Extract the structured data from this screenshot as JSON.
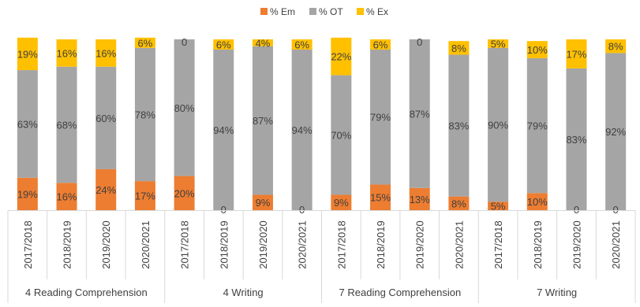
{
  "chart_data": {
    "type": "bar",
    "stacked": true,
    "legend": {
      "position": "top",
      "items": [
        {
          "name": "% Em",
          "color": "#ED7D31"
        },
        {
          "name": "% OT",
          "color": "#A5A5A5"
        },
        {
          "name": "% Ex",
          "color": "#FFC000"
        }
      ]
    },
    "groups": [
      {
        "name": "4 Reading Comprehension",
        "categories": [
          "2017/2018",
          "2018/2019",
          "2019/2020",
          "2020/2021"
        ]
      },
      {
        "name": "4 Writing",
        "categories": [
          "2017/2018",
          "2018/2019",
          "2019/2020",
          "2020/2021"
        ]
      },
      {
        "name": "7 Reading Comprehension",
        "categories": [
          "2017/2018",
          "2018/2019",
          "2019/2020",
          "2020/2021"
        ]
      },
      {
        "name": "7 Writing",
        "categories": [
          "2017/2018",
          "2018/2019",
          "2019/2020",
          "2020/2021"
        ]
      }
    ],
    "series": [
      {
        "name": "% Em",
        "color": "#ED7D31",
        "values": [
          19,
          16,
          24,
          17,
          20,
          0,
          9,
          0,
          9,
          15,
          13,
          8,
          5,
          10,
          0,
          0
        ],
        "labels": [
          "19%",
          "16%",
          "24%",
          "17%",
          "20%",
          "0",
          "9%",
          "0",
          "9%",
          "15%",
          "13%",
          "8%",
          "5%",
          "10%",
          "0",
          "0"
        ]
      },
      {
        "name": "% OT",
        "color": "#A5A5A5",
        "values": [
          63,
          68,
          60,
          78,
          80,
          94,
          87,
          94,
          70,
          79,
          87,
          83,
          90,
          79,
          83,
          92
        ],
        "labels": [
          "63%",
          "68%",
          "60%",
          "78%",
          "80%",
          "94%",
          "87%",
          "94%",
          "70%",
          "79%",
          "87%",
          "83%",
          "90%",
          "79%",
          "83%",
          "92%"
        ]
      },
      {
        "name": "% Ex",
        "color": "#FFC000",
        "values": [
          19,
          16,
          16,
          6,
          0,
          6,
          4,
          6,
          22,
          6,
          0,
          8,
          5,
          10,
          17,
          8
        ],
        "labels": [
          "19%",
          "16%",
          "16%",
          "6%",
          "0",
          "6%",
          "4%",
          "6%",
          "22%",
          "6%",
          "0",
          "8%",
          "5%",
          "10%",
          "17%",
          "8%"
        ]
      }
    ],
    "ylim": [
      0,
      100
    ],
    "grid": false,
    "title": "",
    "xlabel": "",
    "ylabel": ""
  }
}
